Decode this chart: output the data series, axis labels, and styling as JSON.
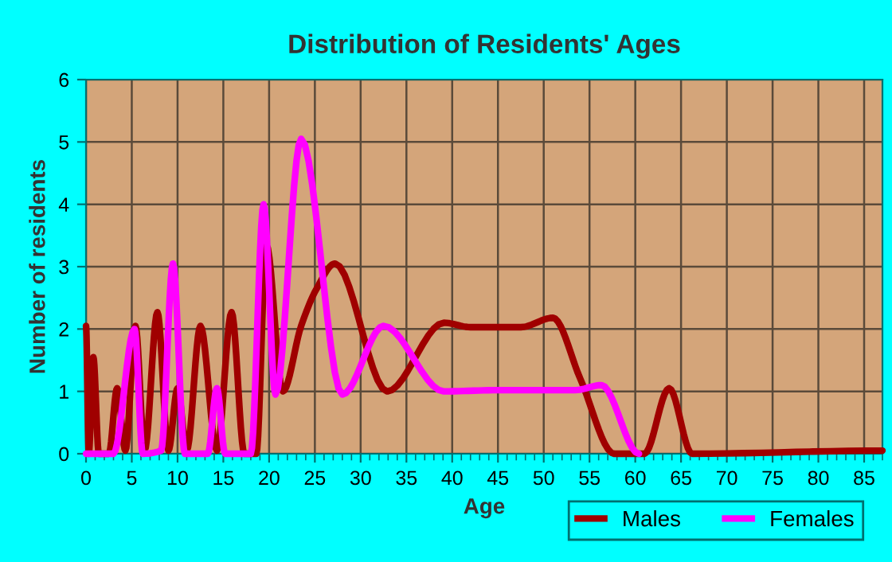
{
  "chart_data": {
    "type": "line",
    "title": "Distribution of Residents' Ages",
    "xlabel": "Age",
    "ylabel": "Number of residents",
    "xlim": [
      0,
      87
    ],
    "xticks": [
      0,
      5,
      10,
      15,
      20,
      25,
      30,
      35,
      40,
      45,
      50,
      55,
      60,
      65,
      70,
      75,
      80,
      85
    ],
    "ylim": [
      0,
      6
    ],
    "yticks": [
      0,
      1,
      2,
      3,
      4,
      5,
      6
    ],
    "grid": true,
    "legend": "bottom right",
    "marker": "none",
    "line_style": "solid",
    "series": [
      {
        "name": "Males",
        "color": "#a00000",
        "x": [
          0,
          0.3,
          0.8,
          1.4,
          2.5,
          3.4,
          4.3,
          5.4,
          6.4,
          7.8,
          9,
          10,
          11,
          12.5,
          14.3,
          15.9,
          17.3,
          18.6,
          19.7,
          21.5,
          23.5,
          25.2,
          27.2,
          32.9,
          39.1,
          42,
          47.5,
          51,
          54,
          57.7,
          61,
          63.7,
          66.2,
          87
        ],
        "values": [
          2.05,
          0,
          1.55,
          0,
          0,
          1.05,
          0.05,
          2.05,
          0.05,
          2.27,
          0.05,
          1.05,
          0.05,
          2.05,
          0.05,
          2.27,
          0,
          0,
          3.35,
          1.0,
          2.05,
          2.65,
          3.05,
          1.0,
          2.1,
          2.03,
          2.03,
          2.18,
          1.2,
          0,
          0,
          1.05,
          0,
          0.05
        ]
      },
      {
        "name": "Females",
        "color": "#ff00ff",
        "x": [
          0,
          3,
          5.3,
          6.2,
          8.2,
          9.5,
          10.8,
          13.3,
          14.3,
          15.2,
          18,
          19.4,
          20.7,
          23.5,
          28,
          32.5,
          39.1,
          45,
          53.4,
          56.3,
          60.4
        ],
        "values": [
          0,
          0,
          2.0,
          0,
          0.05,
          3.05,
          0,
          0,
          1.05,
          0,
          0,
          4.0,
          0.95,
          5.05,
          0.95,
          2.05,
          1.0,
          1.02,
          1.02,
          1.1,
          0
        ]
      }
    ]
  }
}
